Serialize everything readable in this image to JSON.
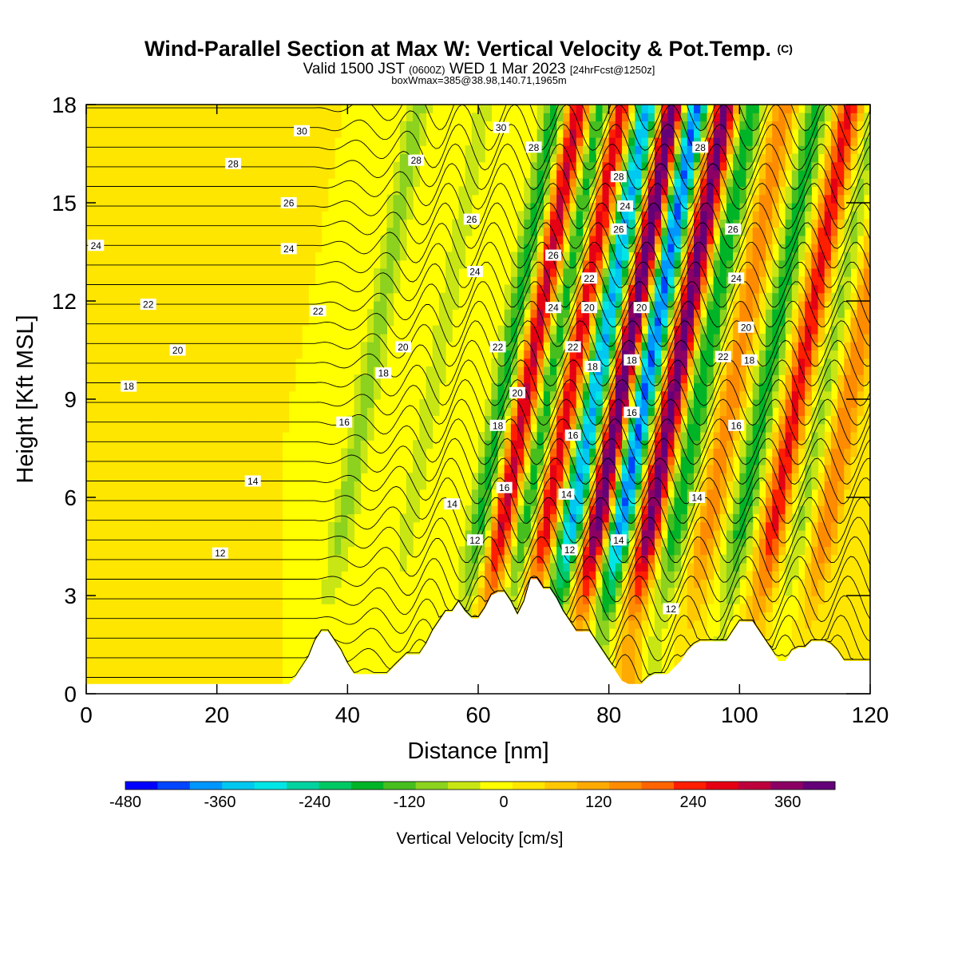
{
  "header": {
    "title_main": "Wind-Parallel Section at Max W: Vertical Velocity & Pot.Temp.",
    "title_mark": "(C)",
    "valid_prefix": "Valid 1500 JST",
    "valid_zulu": "(0600Z)",
    "valid_date": "WED 1 Mar 2023",
    "valid_fcst": "[24hrFcst@1250z]",
    "box_info": "boxWmax=385@38.98,140.71,1965m"
  },
  "chart_data": {
    "type": "heatmap",
    "title": "Wind-Parallel Section at Max W: Vertical Velocity & Pot.Temp.",
    "xlabel": "Distance [nm]",
    "ylabel": "Height [Kft MSL]",
    "xlim": [
      0,
      120
    ],
    "ylim": [
      0,
      18
    ],
    "x_ticks": [
      0,
      20,
      40,
      60,
      80,
      100,
      120
    ],
    "y_ticks": [
      0,
      3,
      6,
      9,
      12,
      15,
      18
    ],
    "grid": false,
    "colorbar": {
      "label": "Vertical Velocity [cm/s]",
      "placement": "bottom",
      "range": [
        -480,
        420
      ],
      "step": 40,
      "tick_values": [
        -480,
        -360,
        -240,
        -120,
        0,
        120,
        240,
        360
      ],
      "colors": [
        "#0000ff",
        "#0046ff",
        "#0096ff",
        "#00c8f0",
        "#00e6e6",
        "#00d2a0",
        "#00c864",
        "#00b428",
        "#46be1e",
        "#8cd21e",
        "#c8e614",
        "#ffff00",
        "#ffe600",
        "#ffc800",
        "#ffaa00",
        "#ff8c00",
        "#ff6400",
        "#ff1e00",
        "#e60014",
        "#be003c",
        "#8c0064",
        "#640078"
      ]
    },
    "updrafts": [
      {
        "x_base": 60.5,
        "peak_cm_s": 300
      },
      {
        "x_base": 67,
        "peak_cm_s": 290
      },
      {
        "x_base": 75,
        "peak_cm_s": 420
      },
      {
        "x_base": 83,
        "peak_cm_s": 385
      },
      {
        "x_base": 92,
        "peak_cm_s": 150
      },
      {
        "x_base": 102,
        "peak_cm_s": 250
      },
      {
        "x_base": 110,
        "peak_cm_s": 160
      }
    ],
    "downdrafts": [
      {
        "x_base": 36,
        "peak_cm_s": -100
      },
      {
        "x_base": 46,
        "peak_cm_s": -60
      },
      {
        "x_base": 57,
        "peak_cm_s": -180
      },
      {
        "x_base": 64,
        "peak_cm_s": -200
      },
      {
        "x_base": 71,
        "peak_cm_s": -370
      },
      {
        "x_base": 78.5,
        "peak_cm_s": -420
      },
      {
        "x_base": 87,
        "peak_cm_s": -200
      },
      {
        "x_base": 97,
        "peak_cm_s": -180
      },
      {
        "x_base": 106,
        "peak_cm_s": -90
      }
    ],
    "theta_contour_labels": [
      {
        "text": "30",
        "x": 33,
        "y": 17.2
      },
      {
        "text": "30",
        "x": 63.5,
        "y": 17.3
      },
      {
        "text": "28",
        "x": 22.5,
        "y": 16.2
      },
      {
        "text": "28",
        "x": 50.5,
        "y": 16.3
      },
      {
        "text": "28",
        "x": 68.5,
        "y": 16.7
      },
      {
        "text": "28",
        "x": 81.5,
        "y": 15.8
      },
      {
        "text": "28",
        "x": 94,
        "y": 16.7
      },
      {
        "text": "26",
        "x": 31,
        "y": 15.0
      },
      {
        "text": "26",
        "x": 59,
        "y": 14.5
      },
      {
        "text": "26",
        "x": 71.5,
        "y": 13.4
      },
      {
        "text": "26",
        "x": 81.5,
        "y": 14.2
      },
      {
        "text": "26",
        "x": 99,
        "y": 14.2
      },
      {
        "text": "24",
        "x": 1.5,
        "y": 13.7
      },
      {
        "text": "24",
        "x": 31,
        "y": 13.6
      },
      {
        "text": "24",
        "x": 82.5,
        "y": 14.9
      },
      {
        "text": "24",
        "x": 59.5,
        "y": 12.9
      },
      {
        "text": "24",
        "x": 71.5,
        "y": 11.8
      },
      {
        "text": "24",
        "x": 99.5,
        "y": 12.7
      },
      {
        "text": "22",
        "x": 9.5,
        "y": 11.9
      },
      {
        "text": "22",
        "x": 35.5,
        "y": 11.7
      },
      {
        "text": "22",
        "x": 77,
        "y": 12.7
      },
      {
        "text": "22",
        "x": 63,
        "y": 10.6
      },
      {
        "text": "22",
        "x": 74.5,
        "y": 10.6
      },
      {
        "text": "22",
        "x": 97.5,
        "y": 10.3
      },
      {
        "text": "20",
        "x": 14,
        "y": 10.5
      },
      {
        "text": "20",
        "x": 48.5,
        "y": 10.6
      },
      {
        "text": "20",
        "x": 77,
        "y": 11.8
      },
      {
        "text": "20",
        "x": 85,
        "y": 11.8
      },
      {
        "text": "20",
        "x": 101,
        "y": 11.2
      },
      {
        "text": "20",
        "x": 66,
        "y": 9.2
      },
      {
        "text": "18",
        "x": 6.5,
        "y": 9.4
      },
      {
        "text": "18",
        "x": 45.5,
        "y": 9.8
      },
      {
        "text": "18",
        "x": 77.5,
        "y": 10.0
      },
      {
        "text": "18",
        "x": 83.5,
        "y": 10.2
      },
      {
        "text": "18",
        "x": 101.5,
        "y": 10.2
      },
      {
        "text": "18",
        "x": 63,
        "y": 8.2
      },
      {
        "text": "16",
        "x": 39.5,
        "y": 8.3
      },
      {
        "text": "16",
        "x": 83.5,
        "y": 8.6
      },
      {
        "text": "16",
        "x": 99.5,
        "y": 8.2
      },
      {
        "text": "16",
        "x": 74.5,
        "y": 7.9
      },
      {
        "text": "16",
        "x": 64,
        "y": 6.3
      },
      {
        "text": "14",
        "x": 25.5,
        "y": 6.5
      },
      {
        "text": "14",
        "x": 56,
        "y": 5.8
      },
      {
        "text": "14",
        "x": 73.5,
        "y": 6.1
      },
      {
        "text": "14",
        "x": 93.5,
        "y": 6.0
      },
      {
        "text": "14",
        "x": 81.5,
        "y": 4.7
      },
      {
        "text": "12",
        "x": 20.5,
        "y": 4.3
      },
      {
        "text": "12",
        "x": 59.5,
        "y": 4.7
      },
      {
        "text": "12",
        "x": 74,
        "y": 4.4
      },
      {
        "text": "12",
        "x": 89.5,
        "y": 2.6
      }
    ],
    "terrain_kft": [
      [
        0,
        0.3
      ],
      [
        4,
        0.3
      ],
      [
        8,
        0.3
      ],
      [
        12,
        0.3
      ],
      [
        16,
        0.3
      ],
      [
        20,
        0.3
      ],
      [
        24,
        0.3
      ],
      [
        28,
        0.3
      ],
      [
        30,
        0.3
      ],
      [
        31,
        0.3
      ],
      [
        32,
        0.5
      ],
      [
        33,
        0.8
      ],
      [
        34,
        1.1
      ],
      [
        35,
        1.6
      ],
      [
        36,
        1.9
      ],
      [
        37,
        1.9
      ],
      [
        38,
        1.6
      ],
      [
        39,
        1.3
      ],
      [
        40,
        0.9
      ],
      [
        41,
        0.6
      ],
      [
        42,
        0.6
      ],
      [
        43,
        0.6
      ],
      [
        44,
        0.6
      ],
      [
        45,
        0.6
      ],
      [
        46,
        0.6
      ],
      [
        47,
        0.8
      ],
      [
        48,
        1.0
      ],
      [
        49,
        1.2
      ],
      [
        50,
        1.2
      ],
      [
        51,
        1.2
      ],
      [
        52,
        1.5
      ],
      [
        53,
        1.9
      ],
      [
        54,
        2.2
      ],
      [
        55,
        2.5
      ],
      [
        56,
        2.5
      ],
      [
        57,
        2.8
      ],
      [
        58,
        2.5
      ],
      [
        59,
        2.3
      ],
      [
        60,
        2.3
      ],
      [
        61,
        2.6
      ],
      [
        62,
        3.0
      ],
      [
        63,
        3.1
      ],
      [
        64,
        3.1
      ],
      [
        65,
        2.8
      ],
      [
        66,
        2.4
      ],
      [
        67,
        2.8
      ],
      [
        68,
        3.5
      ],
      [
        69,
        3.5
      ],
      [
        70,
        3.2
      ],
      [
        71,
        3.2
      ],
      [
        72,
        2.9
      ],
      [
        73,
        2.5
      ],
      [
        74,
        2.2
      ],
      [
        75,
        1.9
      ],
      [
        76,
        1.9
      ],
      [
        77,
        1.9
      ],
      [
        78,
        1.6
      ],
      [
        79,
        1.3
      ],
      [
        80,
        1.0
      ],
      [
        81,
        0.7
      ],
      [
        82,
        0.4
      ],
      [
        83,
        0.3
      ],
      [
        84,
        0.3
      ],
      [
        85,
        0.3
      ],
      [
        86,
        0.5
      ],
      [
        87,
        0.6
      ],
      [
        88,
        0.6
      ],
      [
        89,
        0.6
      ],
      [
        90,
        0.8
      ],
      [
        91,
        1.0
      ],
      [
        92,
        1.3
      ],
      [
        93,
        1.5
      ],
      [
        94,
        1.6
      ],
      [
        95,
        1.6
      ],
      [
        96,
        1.6
      ],
      [
        97,
        1.6
      ],
      [
        98,
        1.6
      ],
      [
        99,
        1.9
      ],
      [
        100,
        2.2
      ],
      [
        101,
        2.2
      ],
      [
        102,
        2.2
      ],
      [
        103,
        1.9
      ],
      [
        104,
        1.6
      ],
      [
        105,
        1.3
      ],
      [
        106,
        1.0
      ],
      [
        107,
        1.0
      ],
      [
        108,
        1.3
      ],
      [
        109,
        1.4
      ],
      [
        110,
        1.4
      ],
      [
        111,
        1.6
      ],
      [
        112,
        1.6
      ],
      [
        113,
        1.6
      ],
      [
        114,
        1.5
      ],
      [
        115,
        1.3
      ],
      [
        116,
        1.0
      ],
      [
        117,
        1.0
      ],
      [
        118,
        1.0
      ],
      [
        119,
        1.0
      ],
      [
        120,
        1.0
      ]
    ]
  }
}
